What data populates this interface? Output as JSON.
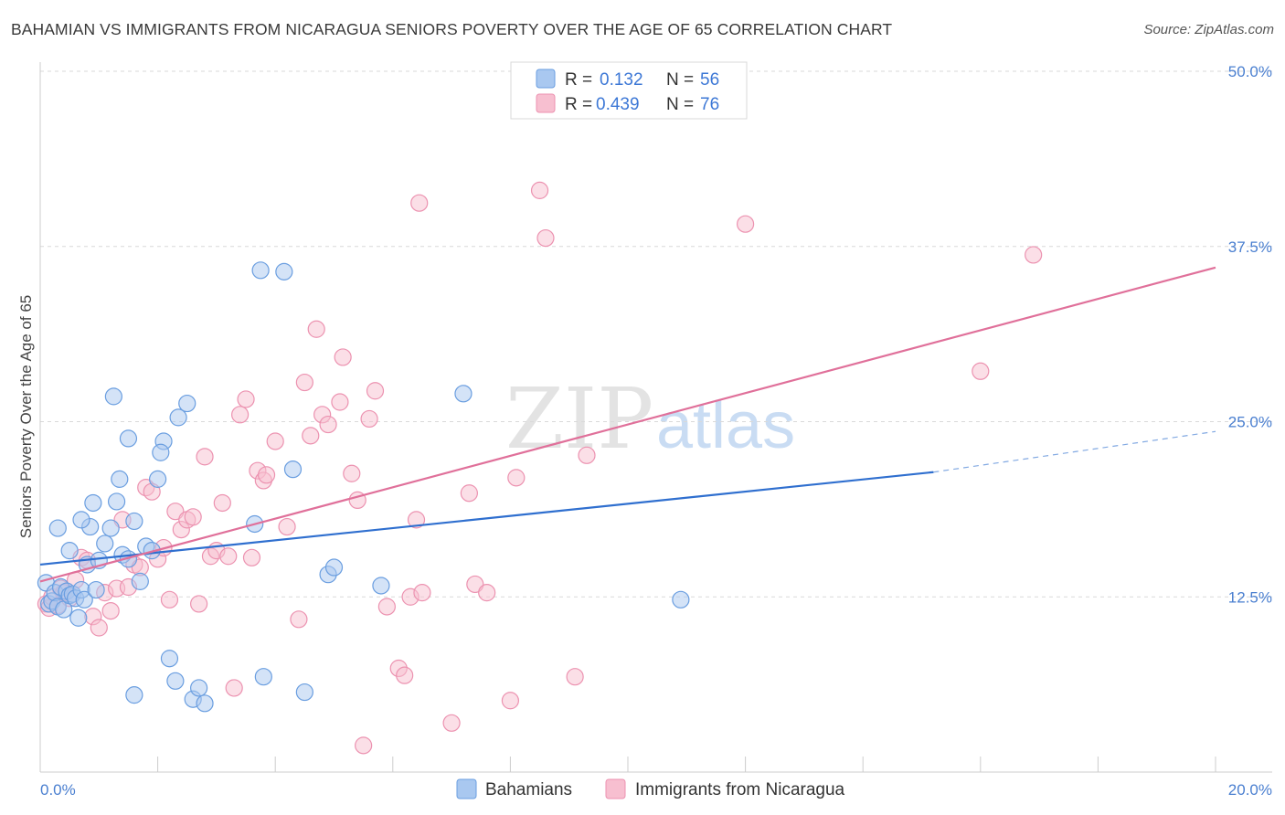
{
  "title": "BAHAMIAN VS IMMIGRANTS FROM NICARAGUA SENIORS POVERTY OVER THE AGE OF 65 CORRELATION CHART",
  "source": "Source: ZipAtlas.com",
  "watermark": {
    "zip": "ZIP",
    "atlas": "atlas"
  },
  "legend": {
    "r_label": "R =",
    "n_label": "N =",
    "rows": [
      {
        "name": "Bahamians",
        "r": "0.132",
        "n": "56"
      },
      {
        "name": "Immigrants from Nicaragua",
        "r": "0.439",
        "n": "76"
      }
    ]
  },
  "colors": {
    "blue_fill": "#a9c8f0",
    "blue_stroke": "#6a9ee0",
    "blue_line": "#2f6fcf",
    "pink_fill": "#f7bfd0",
    "pink_stroke": "#ec92b0",
    "pink_line": "#e0709a",
    "tick_text": "#4a7fd0",
    "grid": "#d9d9d9"
  },
  "chart_data": {
    "type": "scatter",
    "title": "BAHAMIAN VS IMMIGRANTS FROM NICARAGUA SENIORS POVERTY OVER THE AGE OF 65 CORRELATION CHART",
    "xlabel": "",
    "ylabel": "Seniors Poverty Over the Age of 65",
    "xlim": [
      0,
      20
    ],
    "ylim": [
      0,
      50
    ],
    "x_tick_labels": [
      "0.0%",
      "20.0%"
    ],
    "y_ticks": [
      12.5,
      25.0,
      37.5,
      50.0
    ],
    "y_tick_labels": [
      "12.5%",
      "25.0%",
      "37.5%",
      "50.0%"
    ],
    "legend_position": "top-center",
    "series": [
      {
        "name": "Bahamians",
        "r": 0.132,
        "n": 56,
        "trend": {
          "x0": 0,
          "y0": 14.8,
          "x1": 15.2,
          "y1": 21.4,
          "dashed_to_x": 20,
          "dashed_to_y": 24.3
        },
        "points": [
          [
            0.1,
            13.5
          ],
          [
            0.15,
            12.0
          ],
          [
            0.2,
            12.2
          ],
          [
            0.25,
            12.8
          ],
          [
            0.3,
            11.8
          ],
          [
            0.35,
            13.2
          ],
          [
            0.4,
            11.6
          ],
          [
            0.45,
            12.9
          ],
          [
            0.5,
            12.6
          ],
          [
            0.55,
            12.7
          ],
          [
            0.6,
            12.4
          ],
          [
            0.65,
            11.0
          ],
          [
            0.7,
            13.0
          ],
          [
            0.75,
            12.3
          ],
          [
            0.8,
            14.8
          ],
          [
            0.85,
            17.5
          ],
          [
            0.9,
            19.2
          ],
          [
            0.95,
            13.0
          ],
          [
            1.0,
            15.1
          ],
          [
            1.1,
            16.3
          ],
          [
            1.2,
            17.4
          ],
          [
            1.3,
            19.3
          ],
          [
            1.4,
            15.5
          ],
          [
            1.5,
            15.2
          ],
          [
            1.6,
            17.9
          ],
          [
            1.7,
            13.6
          ],
          [
            1.8,
            16.1
          ],
          [
            1.9,
            15.8
          ],
          [
            2.0,
            20.9
          ],
          [
            2.1,
            23.6
          ],
          [
            2.2,
            8.1
          ],
          [
            2.3,
            6.5
          ],
          [
            2.5,
            26.3
          ],
          [
            2.6,
            5.2
          ],
          [
            2.7,
            6.0
          ],
          [
            2.8,
            4.9
          ],
          [
            0.3,
            17.4
          ],
          [
            0.5,
            15.8
          ],
          [
            0.7,
            18.0
          ],
          [
            1.25,
            26.8
          ],
          [
            1.5,
            23.8
          ],
          [
            1.6,
            5.5
          ],
          [
            1.35,
            20.9
          ],
          [
            2.05,
            22.8
          ],
          [
            2.35,
            25.3
          ],
          [
            3.75,
            35.8
          ],
          [
            4.15,
            35.7
          ],
          [
            3.65,
            17.7
          ],
          [
            3.8,
            6.8
          ],
          [
            4.3,
            21.6
          ],
          [
            4.5,
            5.7
          ],
          [
            4.9,
            14.1
          ],
          [
            5.0,
            14.6
          ],
          [
            5.8,
            13.3
          ],
          [
            7.2,
            27.0
          ],
          [
            10.9,
            12.3
          ]
        ]
      },
      {
        "name": "Immigrants from Nicaragua",
        "r": 0.439,
        "n": 76,
        "trend": {
          "x0": 0,
          "y0": 13.6,
          "x1": 20,
          "y1": 36.0
        },
        "points": [
          [
            0.1,
            12.0
          ],
          [
            0.15,
            11.7
          ],
          [
            0.2,
            12.5
          ],
          [
            0.3,
            11.9
          ],
          [
            0.35,
            13.1
          ],
          [
            0.4,
            12.8
          ],
          [
            0.5,
            12.4
          ],
          [
            0.6,
            13.7
          ],
          [
            0.7,
            15.3
          ],
          [
            0.8,
            15.1
          ],
          [
            0.9,
            11.1
          ],
          [
            1.0,
            10.3
          ],
          [
            1.1,
            12.8
          ],
          [
            1.2,
            11.5
          ],
          [
            1.3,
            13.1
          ],
          [
            1.4,
            18.0
          ],
          [
            1.5,
            13.2
          ],
          [
            1.6,
            14.8
          ],
          [
            1.7,
            14.6
          ],
          [
            1.8,
            20.3
          ],
          [
            1.9,
            20.0
          ],
          [
            2.0,
            15.2
          ],
          [
            2.1,
            16.0
          ],
          [
            2.2,
            12.3
          ],
          [
            2.3,
            18.6
          ],
          [
            2.4,
            17.3
          ],
          [
            2.5,
            18.0
          ],
          [
            2.6,
            18.2
          ],
          [
            2.7,
            12.0
          ],
          [
            2.8,
            22.5
          ],
          [
            2.9,
            15.4
          ],
          [
            3.0,
            15.8
          ],
          [
            3.1,
            19.2
          ],
          [
            3.2,
            15.4
          ],
          [
            3.3,
            6.0
          ],
          [
            3.4,
            25.5
          ],
          [
            3.5,
            26.6
          ],
          [
            3.6,
            15.3
          ],
          [
            3.7,
            21.5
          ],
          [
            3.8,
            20.8
          ],
          [
            3.85,
            21.2
          ],
          [
            4.0,
            23.6
          ],
          [
            4.2,
            17.5
          ],
          [
            4.4,
            10.9
          ],
          [
            4.5,
            27.8
          ],
          [
            4.6,
            24.0
          ],
          [
            4.7,
            31.6
          ],
          [
            4.8,
            25.5
          ],
          [
            4.9,
            24.8
          ],
          [
            5.1,
            26.4
          ],
          [
            5.15,
            29.6
          ],
          [
            5.3,
            21.3
          ],
          [
            5.4,
            19.4
          ],
          [
            5.5,
            1.9
          ],
          [
            5.6,
            25.2
          ],
          [
            5.7,
            27.2
          ],
          [
            5.9,
            11.8
          ],
          [
            6.1,
            7.4
          ],
          [
            6.2,
            6.9
          ],
          [
            6.3,
            12.5
          ],
          [
            6.4,
            18.0
          ],
          [
            6.45,
            40.6
          ],
          [
            6.5,
            12.8
          ],
          [
            7.0,
            3.5
          ],
          [
            7.3,
            19.9
          ],
          [
            7.4,
            13.4
          ],
          [
            7.6,
            12.8
          ],
          [
            8.0,
            5.1
          ],
          [
            8.1,
            21.0
          ],
          [
            8.5,
            41.5
          ],
          [
            8.6,
            38.1
          ],
          [
            9.1,
            6.8
          ],
          [
            9.3,
            22.6
          ],
          [
            12.0,
            39.1
          ],
          [
            16.0,
            28.6
          ],
          [
            16.9,
            36.9
          ]
        ]
      }
    ]
  }
}
